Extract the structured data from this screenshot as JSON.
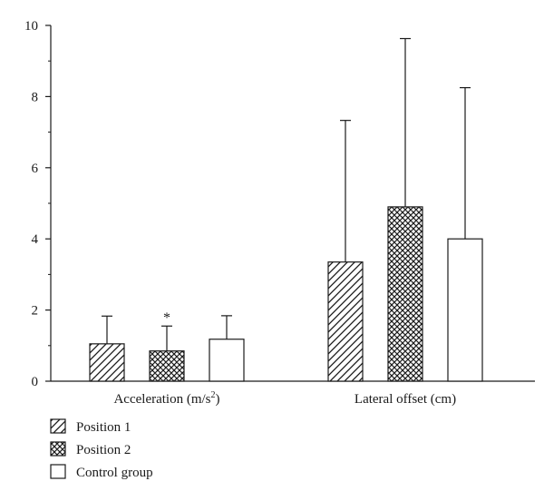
{
  "chart_data": {
    "type": "bar",
    "categories": [
      {
        "base": "Acceleration (m/s",
        "sup": "2",
        "tail": ")"
      },
      {
        "base": "Lateral offset (cm)",
        "sup": "",
        "tail": ""
      }
    ],
    "series": [
      {
        "name": "Position 1",
        "pattern": "diagonal-hatch",
        "values": [
          1.05,
          3.35
        ],
        "errors": [
          0.78,
          3.98
        ]
      },
      {
        "name": "Position 2",
        "pattern": "crosshatch",
        "values": [
          0.85,
          4.9
        ],
        "errors": [
          0.7,
          4.73
        ]
      },
      {
        "name": "Control group",
        "pattern": "none",
        "values": [
          1.18,
          4.0
        ],
        "errors": [
          0.66,
          4.25
        ]
      }
    ],
    "annotations": [
      {
        "text": "*",
        "category_index": 0,
        "series_index": 1
      }
    ],
    "ylim": [
      0,
      10
    ],
    "yticks": [
      0,
      2,
      4,
      6,
      8,
      10
    ],
    "xlabel": "",
    "ylabel": "",
    "grid": false,
    "legend": "bottom-left",
    "colors": {
      "axis": "#1a1a1a",
      "fill": "#ffffff"
    }
  }
}
